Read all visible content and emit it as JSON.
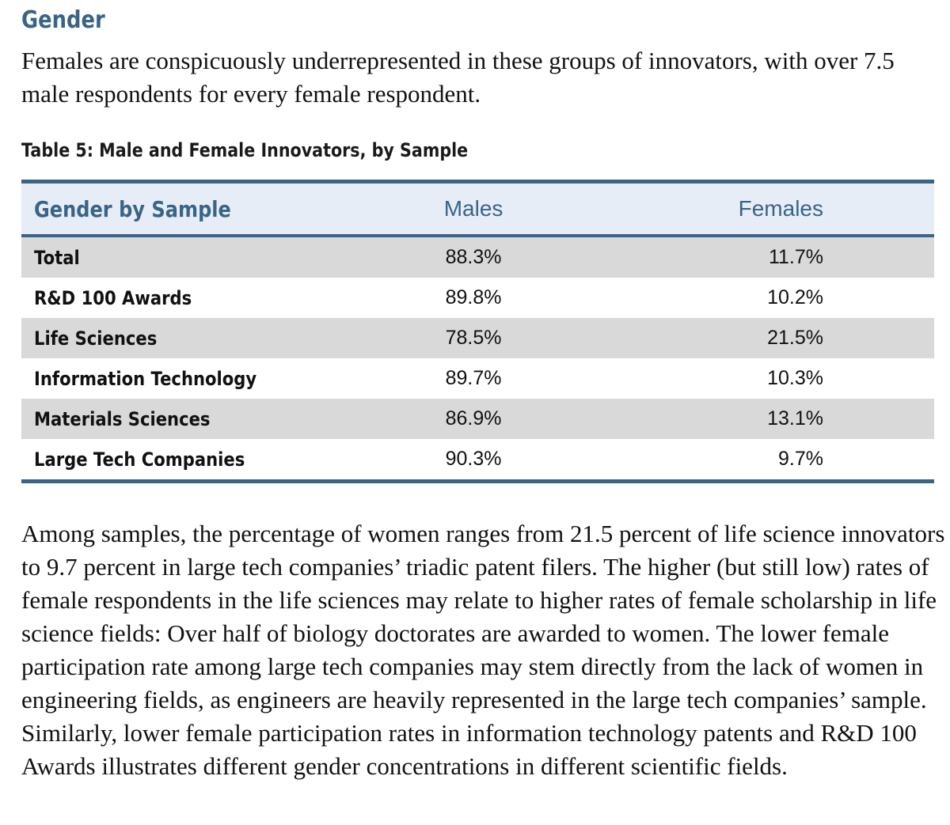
{
  "section": {
    "heading": "Gender",
    "intro": "Females are conspicuously underrepresented in these groups of innovators, with over 7.5 male respondents for every female respondent."
  },
  "table": {
    "caption": "Table 5: Male and Female Innovators, by Sample",
    "headers": {
      "sample": "Gender by Sample",
      "males": "Males",
      "females": "Females"
    },
    "rows": [
      {
        "sample": "Total",
        "males": "88.3%",
        "females": "11.7%"
      },
      {
        "sample": "R&D 100 Awards",
        "males": "89.8%",
        "females": "10.2%"
      },
      {
        "sample": "Life Sciences",
        "males": "78.5%",
        "females": "21.5%"
      },
      {
        "sample": "Information Technology",
        "males": "89.7%",
        "females": "10.3%"
      },
      {
        "sample": "Materials Sciences",
        "males": "86.9%",
        "females": "13.1%"
      },
      {
        "sample": "Large Tech Companies",
        "males": "90.3%",
        "females": "9.7%"
      }
    ],
    "colors": {
      "accent": "#3a6485",
      "header_bg": "#e6edf7",
      "stripe_bg": "#d9d9d9"
    }
  },
  "body": {
    "paragraph": "Among samples, the percentage of women ranges from 21.5 percent of life science innovators to 9.7 percent in large tech companies’ triadic patent filers. The higher (but still low) rates of female respondents in the life sciences may relate to higher rates of female scholarship in life science fields: Over half of biology doctorates are awarded to women. The lower female participation rate among large tech companies may stem directly from the lack of women in engineering fields, as engineers are heavily represented in the large tech companies’ sample. Similarly, lower female participation rates in information technology patents and R&D 100 Awards illustrates different gender concentrations in different scientific fields."
  }
}
